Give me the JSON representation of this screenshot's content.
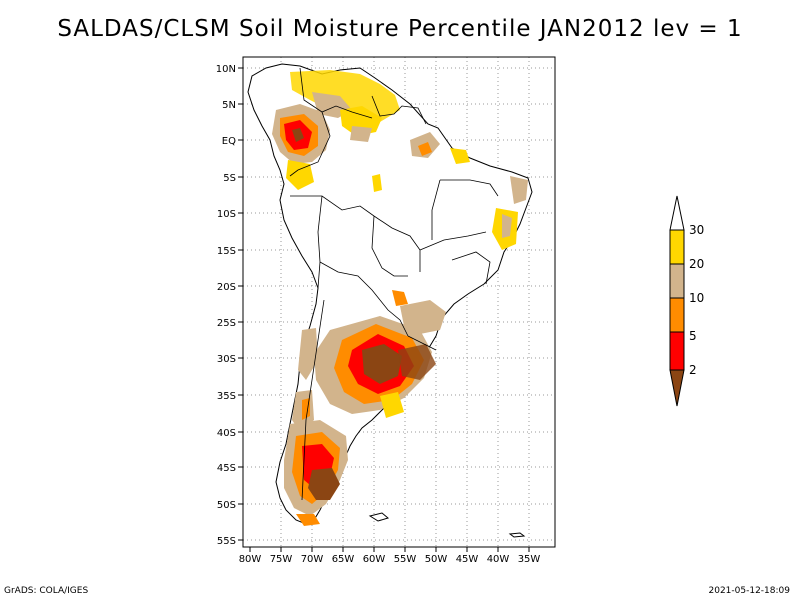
{
  "title": "SALDAS/CLSM Soil Moisture Percentile JAN2012 lev = 1",
  "axes": {
    "lat_labels": [
      "10N",
      "5N",
      "EQ",
      "5S",
      "10S",
      "15S",
      "20S",
      "25S",
      "30S",
      "35S",
      "40S",
      "45S",
      "50S",
      "55S"
    ],
    "lon_labels": [
      "80W",
      "75W",
      "70W",
      "65W",
      "60W",
      "55W",
      "50W",
      "45W",
      "40W",
      "35W"
    ]
  },
  "legend": {
    "labels": [
      "2",
      "5",
      "10",
      "20",
      "30"
    ],
    "colors": {
      "below_2": "#8b4513",
      "2_5": "#ff0000",
      "5_10": "#ff8c00",
      "10_20": "#d2b48c",
      "20_30": "#ffd700",
      "above_30": "#ffffff"
    }
  },
  "footer": {
    "left": "GrADS: COLA/IGES",
    "right": "2021-05-12-18:09"
  }
}
